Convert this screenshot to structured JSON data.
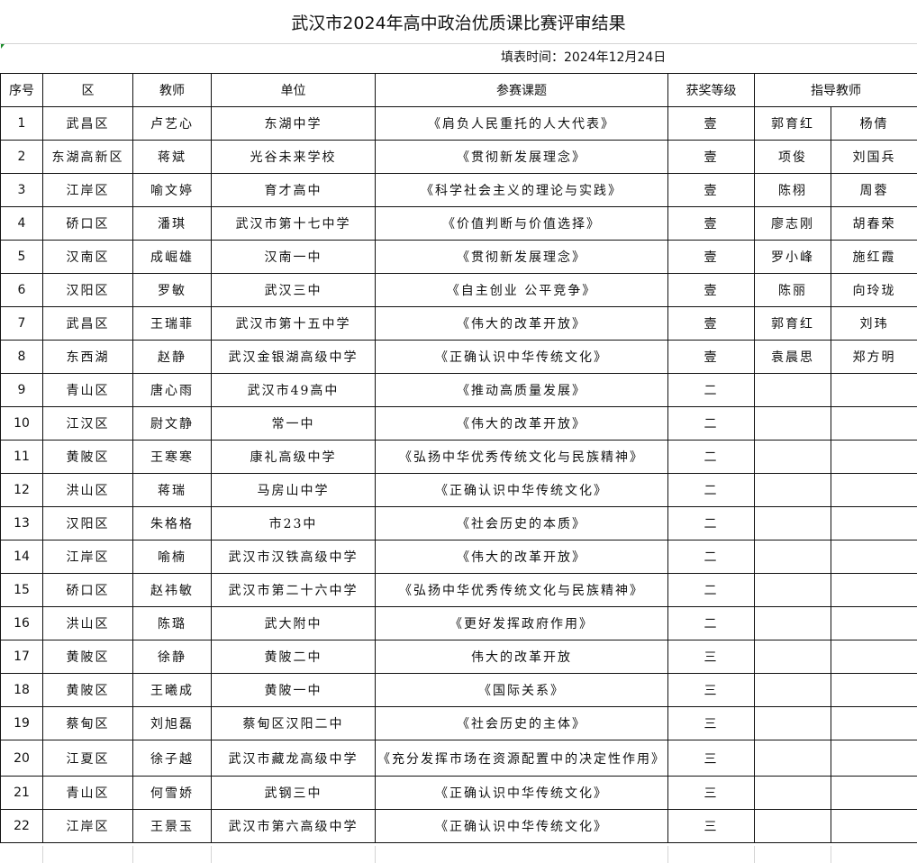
{
  "title": "武汉市2024年高中政治优质课比赛评审结果",
  "fill_date": "填表时间：2024年12月24日",
  "headers": [
    "序号",
    "区",
    "教师",
    "单位",
    "参赛课题",
    "获奖等级",
    "指导教师"
  ],
  "rows": [
    [
      "1",
      "武昌区",
      "卢艺心",
      "东湖中学",
      "《肩负人民重托的人大代表》",
      "壹",
      "郭育红",
      "杨倩"
    ],
    [
      "2",
      "东湖高新区",
      "蒋斌",
      "光谷未来学校",
      "《贯彻新发展理念》",
      "壹",
      "项俊",
      "刘国兵"
    ],
    [
      "3",
      "江岸区",
      "喻文婷",
      "育才高中",
      "《科学社会主义的理论与实践》",
      "壹",
      "陈栩",
      "周蓉"
    ],
    [
      "4",
      "硚口区",
      "潘琪",
      "武汉市第十七中学",
      "《价值判断与价值选择》",
      "壹",
      "廖志刚",
      "胡春荣"
    ],
    [
      "5",
      "汉南区",
      "成崛雄",
      "汉南一中",
      "《贯彻新发展理念》",
      "壹",
      "罗小峰",
      "施红霞"
    ],
    [
      "6",
      "汉阳区",
      "罗敏",
      "武汉三中",
      "《自主创业 公平竞争》",
      "壹",
      "陈丽",
      "向玲珑"
    ],
    [
      "7",
      "武昌区",
      "王瑞菲",
      "武汉市第十五中学",
      "《伟大的改革开放》",
      "壹",
      "郭育红",
      "刘玮"
    ],
    [
      "8",
      "东西湖",
      "赵静",
      "武汉金银湖高级中学",
      "《正确认识中华传统文化》",
      "壹",
      "袁晨思",
      "郑方明"
    ],
    [
      "9",
      "青山区",
      "唐心雨",
      "武汉市49高中",
      "《推动高质量发展》",
      "二",
      "",
      ""
    ],
    [
      "10",
      "江汉区",
      "尉文静",
      "常一中",
      "《伟大的改革开放》",
      "二",
      "",
      ""
    ],
    [
      "11",
      "黄陂区",
      "王寒寒",
      "康礼高级中学",
      "《弘扬中华优秀传统文化与民族精神》",
      "二",
      "",
      ""
    ],
    [
      "12",
      "洪山区",
      "蒋瑞",
      "马房山中学",
      "《正确认识中华传统文化》",
      "二",
      "",
      ""
    ],
    [
      "13",
      "汉阳区",
      "朱格格",
      "市23中",
      "《社会历史的本质》",
      "二",
      "",
      ""
    ],
    [
      "14",
      "江岸区",
      "喻楠",
      "武汉市汉铁高级中学",
      "《伟大的改革开放》",
      "二",
      "",
      ""
    ],
    [
      "15",
      "硚口区",
      "赵祎敏",
      "武汉市第二十六中学",
      "《弘扬中华优秀传统文化与民族精神》",
      "二",
      "",
      ""
    ],
    [
      "16",
      "洪山区",
      "陈璐",
      "武大附中",
      "《更好发挥政府作用》",
      "二",
      "",
      ""
    ],
    [
      "17",
      "黄陂区",
      "徐静",
      "黄陂二中",
      "伟大的改革开放",
      "三",
      "",
      ""
    ],
    [
      "18",
      "黄陂区",
      "王曦成",
      "黄陂一中",
      "《国际关系》",
      "三",
      "",
      ""
    ],
    [
      "19",
      "蔡甸区",
      "刘旭磊",
      "蔡甸区汉阳二中",
      "《社会历史的主体》",
      "三",
      "",
      ""
    ],
    [
      "20",
      "江夏区",
      "徐子越",
      "武汉市藏龙高级中学",
      "《充分发挥市场在资源配置中的决定性作用》",
      "三",
      "",
      ""
    ],
    [
      "21",
      "青山区",
      "何雪娇",
      "武钢三中",
      "《正确认识中华传统文化》",
      "三",
      "",
      ""
    ],
    [
      "22",
      "江岸区",
      "王景玉",
      "武汉市第六高级中学",
      "《正确认识中华传统文化》",
      "三",
      "",
      ""
    ]
  ]
}
